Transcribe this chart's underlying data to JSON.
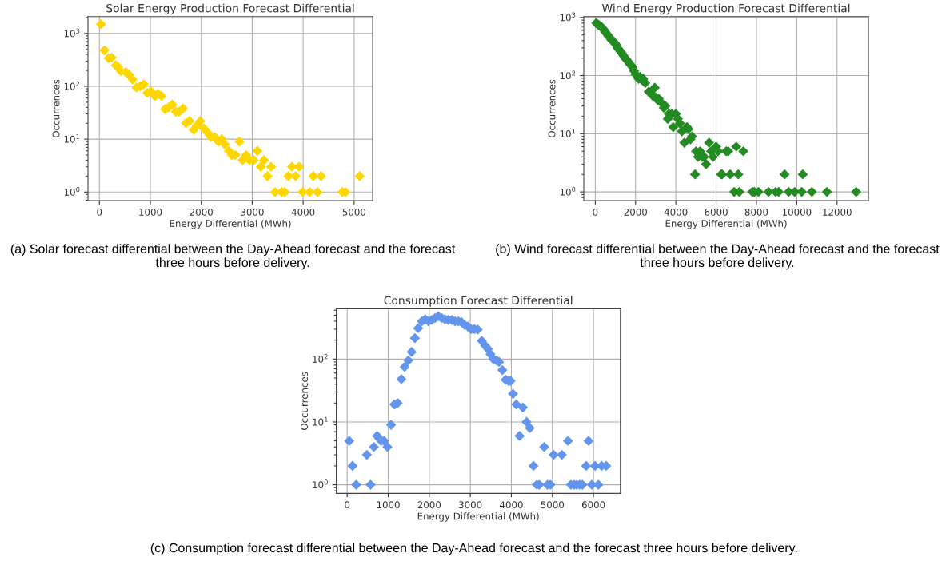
{
  "chart_data": [
    {
      "type": "scatter",
      "title": "Solar Energy Production Forecast Differential",
      "xlabel": "Energy Differential (MWh)",
      "ylabel": "Occurrences",
      "log": "y",
      "grid": true,
      "marker": "diamond",
      "xlim": [
        -224,
        5364
      ],
      "xticks": [
        0,
        1000,
        2000,
        3000,
        4000,
        5000
      ],
      "ylim": [
        0.69,
        2080
      ],
      "yticks": [
        {
          "value": 1,
          "label": "10$^{0}$"
        },
        {
          "value": 10,
          "label": "10$^{1}$"
        },
        {
          "value": 100,
          "label": "10$^{2}$"
        },
        {
          "value": 1000,
          "label": "10$^{3}$"
        }
      ],
      "x": [
        30,
        100,
        180,
        240,
        320,
        370,
        420,
        520,
        580,
        650,
        730,
        800,
        870,
        940,
        1010,
        1090,
        1150,
        1220,
        1290,
        1360,
        1430,
        1500,
        1560,
        1640,
        1700,
        1770,
        1850,
        1910,
        1980,
        2050,
        2130,
        2190,
        2260,
        2340,
        2400,
        2460,
        2540,
        2600,
        2670,
        2750,
        2810,
        2880,
        2950,
        3030,
        3100,
        3170,
        3230,
        3300,
        3370,
        3450,
        3580,
        3640,
        3710,
        3780,
        3850,
        3920,
        3990,
        4130,
        4200,
        4280,
        4350,
        4770,
        4830,
        5110
      ],
      "series": [
        {
          "color": "#ffd700",
          "values": [
            1500,
            480,
            340,
            350,
            250,
            230,
            195,
            185,
            165,
            135,
            95,
            100,
            110,
            75,
            80,
            65,
            72,
            65,
            37,
            40,
            45,
            33,
            33,
            38,
            20,
            22,
            15,
            18,
            22,
            16,
            13,
            11,
            11,
            9,
            10,
            8,
            6,
            5,
            5,
            9,
            4,
            5,
            4,
            4,
            6,
            3,
            4,
            2,
            3,
            1,
            1,
            1,
            2,
            3,
            2,
            3,
            1,
            1,
            2,
            1,
            2,
            1,
            1,
            2
          ]
        }
      ],
      "annotations": [
        "(a) Solar forecast differential between the Day-Ahead forecast and the forecast three hours before delivery."
      ]
    },
    {
      "type": "scatter",
      "title": "Wind Energy Production Forecast Differential",
      "xlabel": "Energy Differential (MWh)",
      "ylabel": "Occurrences",
      "log": "y",
      "grid": true,
      "marker": "diamond",
      "xlim": [
        -569,
        13560
      ],
      "xticks": [
        0,
        2000,
        4000,
        6000,
        8000,
        10000,
        12000
      ],
      "ylim": [
        0.71,
        1032
      ],
      "yticks": [
        {
          "value": 1,
          "label": "10$^{0}$"
        },
        {
          "value": 10,
          "label": "10$^{1}$"
        },
        {
          "value": 100,
          "label": "10$^{2}$"
        },
        {
          "value": 1000,
          "label": "10$^{3}$"
        }
      ],
      "x": [
        50,
        120,
        200,
        280,
        350,
        420,
        500,
        580,
        650,
        720,
        800,
        880,
        950,
        1030,
        1100,
        1180,
        1250,
        1330,
        1400,
        1480,
        1550,
        1630,
        1700,
        1780,
        1850,
        1930,
        2000,
        2150,
        2220,
        2300,
        2380,
        2480,
        2650,
        2750,
        2850,
        2950,
        3000,
        3100,
        3150,
        3250,
        3400,
        3480,
        3600,
        3650,
        3800,
        3870,
        4000,
        4100,
        4200,
        4300,
        4420,
        4550,
        4620,
        4720,
        4800,
        4950,
        5000,
        5100,
        5200,
        5300,
        5400,
        5500,
        5650,
        5750,
        5850,
        6000,
        6100,
        6250,
        6300,
        6500,
        6600,
        6700,
        6900,
        7000,
        7100,
        7150,
        7350,
        7800,
        7900,
        8100,
        8600,
        8950,
        9100,
        9400,
        9600,
        9900,
        10250,
        10300,
        10750,
        11500,
        12950
      ],
      "series": [
        {
          "color": "#228b22",
          "values": [
            800,
            760,
            730,
            700,
            660,
            620,
            560,
            520,
            480,
            450,
            410,
            390,
            370,
            340,
            300,
            280,
            260,
            240,
            220,
            200,
            190,
            175,
            160,
            150,
            140,
            120,
            105,
            88,
            95,
            85,
            88,
            75,
            53,
            50,
            45,
            62,
            42,
            38,
            40,
            35,
            28,
            30,
            18,
            22,
            22,
            13,
            22,
            18,
            15,
            11,
            7,
            13,
            12,
            8,
            9,
            2,
            5,
            4,
            5,
            4,
            4,
            3,
            7,
            5,
            4,
            6,
            5,
            2,
            2,
            5,
            5,
            2,
            1,
            6,
            2,
            1,
            5,
            1,
            1,
            1,
            1,
            1,
            1,
            2,
            1,
            1,
            1,
            2,
            1,
            1,
            1
          ]
        }
      ],
      "annotations": [
        "(b) Wind forecast differential between the Day-Ahead forecast and the forecast three hours before delivery."
      ]
    },
    {
      "type": "scatter",
      "title": "Consumption Forecast Differential",
      "xlabel": "Energy Differential (MWh)",
      "ylabel": "Occurrences",
      "log": "y",
      "grid": true,
      "marker": "diamond",
      "xlim": [
        -266,
        6656
      ],
      "xticks": [
        0,
        1000,
        2000,
        3000,
        4000,
        5000,
        6000
      ],
      "ylim": [
        0.73,
        631
      ],
      "yticks": [
        {
          "value": 1,
          "label": "10$^{0}$"
        },
        {
          "value": 10,
          "label": "10$^{1}$"
        },
        {
          "value": 100,
          "label": "10$^{2}$"
        }
      ],
      "x": [
        50,
        130,
        220,
        480,
        570,
        650,
        730,
        780,
        830,
        900,
        980,
        1070,
        1150,
        1230,
        1320,
        1400,
        1490,
        1570,
        1650,
        1730,
        1820,
        1900,
        1980,
        2060,
        2140,
        2220,
        2300,
        2380,
        2460,
        2550,
        2630,
        2710,
        2780,
        2860,
        2940,
        3020,
        3100,
        3180,
        3280,
        3360,
        3430,
        3490,
        3560,
        3640,
        3700,
        3780,
        3860,
        3930,
        3980,
        4040,
        4120,
        4200,
        4280,
        4370,
        4450,
        4540,
        4620,
        4680,
        4800,
        4880,
        4950,
        5030,
        5230,
        5380,
        5450,
        5530,
        5590,
        5660,
        5730,
        5820,
        5880,
        5960,
        6040,
        6120,
        6200,
        6310
      ],
      "series": [
        {
          "color": "#6495ed",
          "values": [
            5,
            2,
            1,
            3,
            1,
            4,
            6,
            5.5,
            5,
            5,
            4,
            9,
            19,
            20,
            48,
            75,
            95,
            130,
            215,
            310,
            400,
            430,
            400,
            420,
            450,
            480,
            450,
            430,
            420,
            420,
            400,
            400,
            390,
            350,
            330,
            300,
            300,
            295,
            195,
            165,
            145,
            120,
            100,
            95,
            90,
            67,
            47,
            45,
            45,
            28,
            19,
            6,
            17,
            10,
            8,
            2,
            1,
            1,
            4,
            1,
            1,
            3,
            3,
            5,
            1,
            1,
            1,
            1,
            1,
            2,
            5,
            1,
            2,
            1,
            2,
            2
          ]
        }
      ],
      "annotations": [
        "(c) Consumption forecast differential between the Day-Ahead forecast and the forecast three hours before delivery."
      ]
    }
  ]
}
